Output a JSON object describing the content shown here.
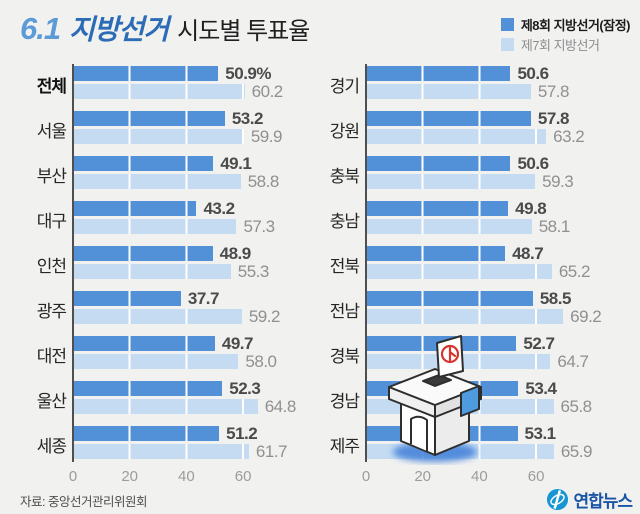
{
  "title": {
    "highlight": "6.1",
    "event": "지방선거",
    "subtitle": "시도별 투표율"
  },
  "footer": {
    "source": "자료: 중앙선거관리위원회",
    "logo": "연합뉴스"
  },
  "chart_data": {
    "type": "bar",
    "orientation": "horizontal",
    "unit": "%",
    "x_ticks": [
      0,
      20,
      40,
      60
    ],
    "xlim": [
      0,
      72
    ],
    "grid": true,
    "legend_position": "top-right",
    "series": [
      {
        "name": "제8회 지방선거(잠정)",
        "color": "#5291d7"
      },
      {
        "name": "제7회 지방선거",
        "color": "#c4dbf2"
      }
    ],
    "columns": [
      {
        "rows": [
          {
            "region": "전체",
            "emphasis": true,
            "v8": 50.9,
            "v8_label": "50.9%",
            "v7": 60.2,
            "v7_label": "60.2"
          },
          {
            "region": "서울",
            "v8": 53.2,
            "v8_label": "53.2",
            "v7": 59.9,
            "v7_label": "59.9"
          },
          {
            "region": "부산",
            "v8": 49.1,
            "v8_label": "49.1",
            "v7": 58.8,
            "v7_label": "58.8"
          },
          {
            "region": "대구",
            "v8": 43.2,
            "v8_label": "43.2",
            "v7": 57.3,
            "v7_label": "57.3"
          },
          {
            "region": "인천",
            "v8": 48.9,
            "v8_label": "48.9",
            "v7": 55.3,
            "v7_label": "55.3"
          },
          {
            "region": "광주",
            "v8": 37.7,
            "v8_label": "37.7",
            "v7": 59.2,
            "v7_label": "59.2"
          },
          {
            "region": "대전",
            "v8": 49.7,
            "v8_label": "49.7",
            "v7": 58.0,
            "v7_label": "58.0"
          },
          {
            "region": "울산",
            "v8": 52.3,
            "v8_label": "52.3",
            "v7": 64.8,
            "v7_label": "64.8"
          },
          {
            "region": "세종",
            "v8": 51.2,
            "v8_label": "51.2",
            "v7": 61.7,
            "v7_label": "61.7"
          }
        ]
      },
      {
        "rows": [
          {
            "region": "경기",
            "v8": 50.6,
            "v8_label": "50.6",
            "v7": 57.8,
            "v7_label": "57.8"
          },
          {
            "region": "강원",
            "v8": 57.8,
            "v8_label": "57.8",
            "v7": 63.2,
            "v7_label": "63.2"
          },
          {
            "region": "충북",
            "v8": 50.6,
            "v8_label": "50.6",
            "v7": 59.3,
            "v7_label": "59.3"
          },
          {
            "region": "충남",
            "v8": 49.8,
            "v8_label": "49.8",
            "v7": 58.1,
            "v7_label": "58.1"
          },
          {
            "region": "전북",
            "v8": 48.7,
            "v8_label": "48.7",
            "v7": 65.2,
            "v7_label": "65.2"
          },
          {
            "region": "전남",
            "v8": 58.5,
            "v8_label": "58.5",
            "v7": 69.2,
            "v7_label": "69.2"
          },
          {
            "region": "경북",
            "v8": 52.7,
            "v8_label": "52.7",
            "v7": 64.7,
            "v7_label": "64.7"
          },
          {
            "region": "경남",
            "v8": 53.4,
            "v8_label": "53.4",
            "v7": 65.8,
            "v7_label": "65.8"
          },
          {
            "region": "제주",
            "v8": 53.1,
            "v8_label": "53.1",
            "v7": 65.9,
            "v7_label": "65.9"
          }
        ]
      }
    ]
  }
}
